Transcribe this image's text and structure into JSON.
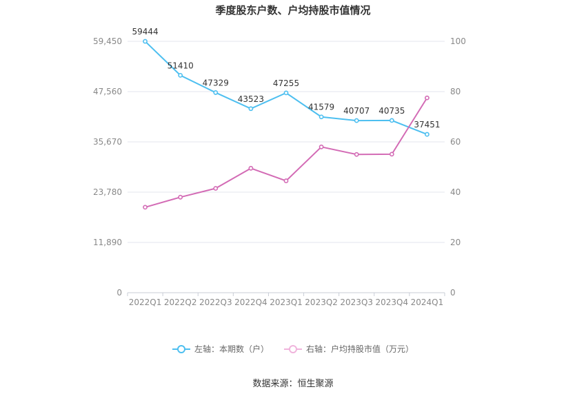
{
  "chart_data": {
    "type": "line",
    "title": "季度股东户数、户均持股市值情况",
    "categories": [
      "2022Q1",
      "2022Q2",
      "2022Q3",
      "2022Q4",
      "2023Q1",
      "2023Q2",
      "2023Q3",
      "2023Q4",
      "2024Q1"
    ],
    "left_axis": {
      "ylim": [
        0,
        59450
      ],
      "ticks": [
        "0",
        "11,890",
        "23,780",
        "35,670",
        "47,560",
        "59,450"
      ],
      "tick_values": [
        0,
        11890,
        23780,
        35670,
        47560,
        59450
      ]
    },
    "right_axis": {
      "ylim": [
        0,
        100
      ],
      "ticks": [
        "0",
        "20",
        "40",
        "60",
        "80",
        "100"
      ],
      "tick_values": [
        0,
        20,
        40,
        60,
        80,
        100
      ]
    },
    "series": [
      {
        "name": "左轴：本期数（户）",
        "axis": "left",
        "color": "#4dbff0",
        "values": [
          59444,
          51410,
          47329,
          43523,
          47255,
          41579,
          40707,
          40735,
          37451
        ],
        "labels": [
          "59444",
          "51410",
          "47329",
          "43523",
          "47255",
          "41579",
          "40707",
          "40735",
          "37451"
        ]
      },
      {
        "name": "右轴：户均持股市值（万元）",
        "axis": "right",
        "color": "#d36bb5",
        "values": [
          34.0,
          38.0,
          41.5,
          49.5,
          44.5,
          58.0,
          55.0,
          55.1,
          77.5
        ]
      }
    ],
    "grid": true,
    "legend": "bottom-center"
  },
  "source": "数据来源：恒生聚源"
}
